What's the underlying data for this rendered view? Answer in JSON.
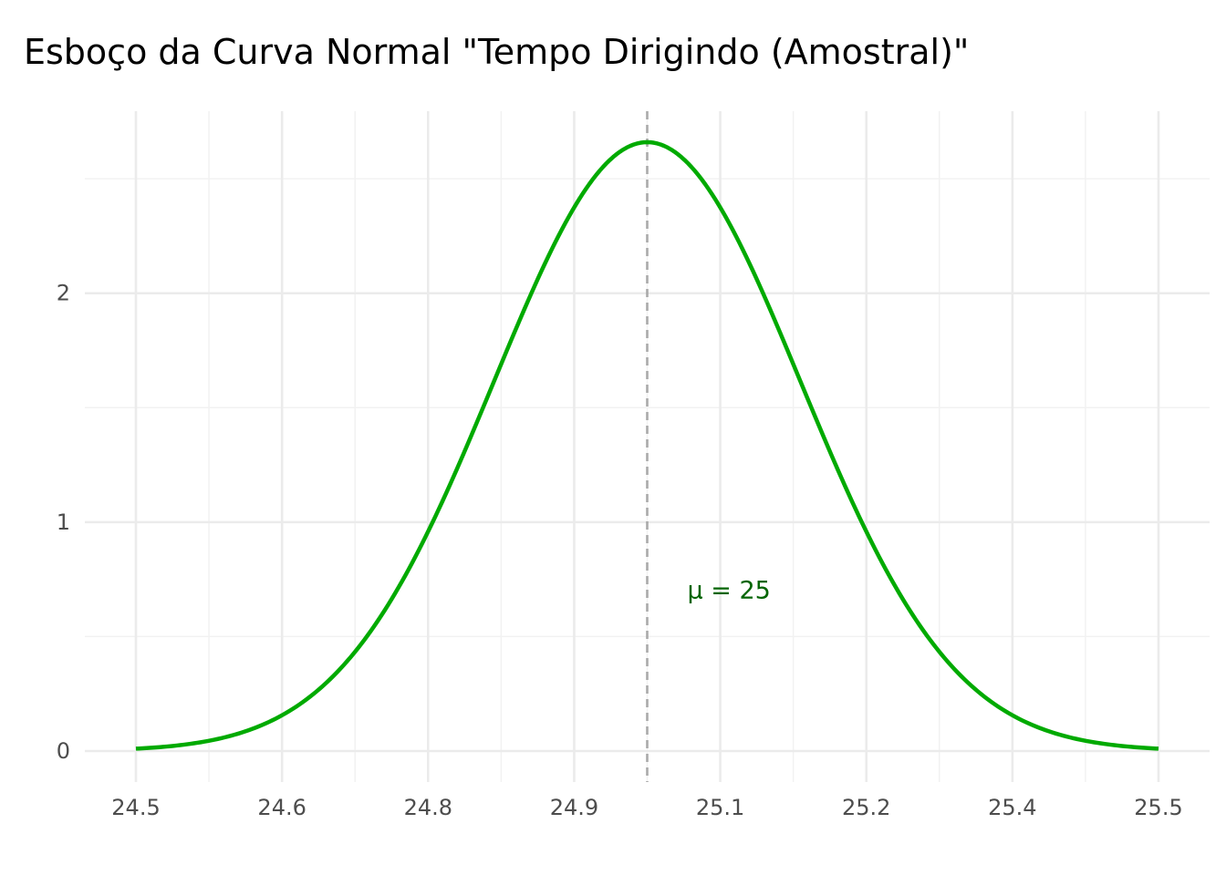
{
  "chart_data": {
    "type": "line",
    "title": "Esboço da Curva Normal \"Tempo Dirigindo (Amostral)\"",
    "xlabel": "",
    "ylabel": "",
    "x_tick_labels": [
      "24.5",
      "24.6",
      "24.8",
      "24.9",
      "25.1",
      "25.2",
      "25.4",
      "25.5"
    ],
    "y_ticks": [
      0,
      1,
      2
    ],
    "y_tick_labels": [
      "0",
      "1",
      "2"
    ],
    "xlim": [
      24.5,
      25.5
    ],
    "ylim": [
      0,
      2.66
    ],
    "series": [
      {
        "distribution": "normal",
        "mean": 25,
        "sd": 0.15,
        "x_range": [
          24.5,
          25.5
        ],
        "peak_density": 2.66,
        "color": "#00AA00"
      }
    ],
    "mean_line": {
      "x": 25,
      "style": "dashed",
      "color": "#aaaaaa"
    },
    "annotation": {
      "text": "μ = 25",
      "x": 25.08,
      "y": 0.7,
      "color": "#006400"
    },
    "grid": true,
    "legend": "none"
  }
}
